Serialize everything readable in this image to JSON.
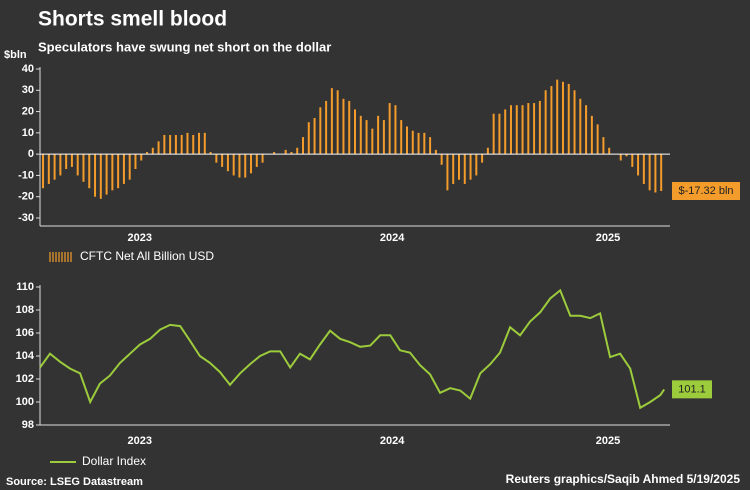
{
  "title": "Shorts smell blood",
  "subtitle": "Speculators have swung net short on the dollar",
  "source": "Source: LSEG Datastream",
  "credit": "Reuters graphics/Saqib Ahmed 5/19/2025",
  "chart_data": [
    {
      "type": "bar",
      "y_label": "$bln",
      "xlim": [
        2023.342,
        2025.414
      ],
      "xticks": [
        {
          "value": 2023.67,
          "label": "2023"
        },
        {
          "value": 2024.5,
          "label": "2024"
        },
        {
          "value": 2025.21,
          "label": "2025"
        }
      ],
      "ylim": [
        -30,
        40
      ],
      "yticks": [
        -30,
        -20,
        -10,
        0,
        10,
        20,
        30,
        40
      ],
      "grid": false,
      "series": [
        {
          "name": "CFTC Net All Billion USD",
          "color": "#f39c2b",
          "x": [
            2023.352,
            2023.371,
            2023.39,
            2023.409,
            2023.428,
            2023.447,
            2023.466,
            2023.485,
            2023.504,
            2023.523,
            2023.542,
            2023.561,
            2023.58,
            2023.599,
            2023.618,
            2023.637,
            2023.656,
            2023.675,
            2023.694,
            2023.713,
            2023.732,
            2023.751,
            2023.77,
            2023.789,
            2023.808,
            2023.827,
            2023.846,
            2023.865,
            2023.884,
            2023.903,
            2023.922,
            2023.941,
            2023.96,
            2023.979,
            2023.998,
            2024.017,
            2024.036,
            2024.055,
            2024.074,
            2024.093,
            2024.112,
            2024.131,
            2024.15,
            2024.169,
            2024.188,
            2024.207,
            2024.226,
            2024.245,
            2024.264,
            2024.283,
            2024.302,
            2024.321,
            2024.34,
            2024.359,
            2024.378,
            2024.397,
            2024.416,
            2024.435,
            2024.454,
            2024.473,
            2024.492,
            2024.511,
            2024.53,
            2024.549,
            2024.568,
            2024.587,
            2024.606,
            2024.625,
            2024.644,
            2024.663,
            2024.682,
            2024.701,
            2024.72,
            2024.739,
            2024.758,
            2024.777,
            2024.796,
            2024.815,
            2024.834,
            2024.853,
            2024.872,
            2024.891,
            2024.91,
            2024.929,
            2024.948,
            2024.967,
            2024.986,
            2025.005,
            2025.024,
            2025.043,
            2025.062,
            2025.081,
            2025.1,
            2025.119,
            2025.138,
            2025.157,
            2025.176,
            2025.195,
            2025.214,
            2025.233,
            2025.252,
            2025.271,
            2025.29,
            2025.309,
            2025.328,
            2025.347,
            2025.366,
            2025.385
          ],
          "values": [
            -16,
            -14,
            -12,
            -10,
            -7,
            -6,
            -10,
            -13,
            -16,
            -20,
            -21,
            -19,
            -17,
            -16,
            -14,
            -12,
            -7,
            -3,
            1,
            3,
            6,
            9,
            9,
            9,
            9,
            10,
            9,
            10,
            10,
            1,
            -4,
            -6,
            -8,
            -10,
            -11,
            -11,
            -9,
            -6,
            -4,
            0,
            1,
            0,
            2,
            1,
            3,
            8,
            15,
            17,
            22,
            25,
            31,
            30,
            26,
            25,
            21,
            18,
            16,
            12,
            18,
            16,
            24,
            23,
            16,
            13,
            11,
            10,
            10,
            8,
            2,
            -5,
            -17,
            -14,
            -12,
            -14,
            -12,
            -10,
            -4,
            3,
            19,
            19,
            21,
            23,
            23,
            23,
            24,
            24,
            25,
            30,
            32,
            35,
            34,
            33,
            30,
            26,
            23,
            18,
            14,
            8,
            3,
            0,
            -3,
            -1,
            -6,
            -10,
            -14,
            -17,
            -18,
            -17.32
          ],
          "value_labels": [
            null,
            null,
            null,
            null,
            null,
            null,
            null,
            null,
            null,
            null,
            null,
            null,
            null,
            null,
            null,
            null,
            null,
            null,
            null,
            null,
            null,
            null,
            null,
            null,
            null,
            null,
            null,
            null,
            null,
            null,
            null,
            null,
            null,
            null,
            null,
            null,
            null,
            null,
            null,
            null,
            null,
            null,
            null,
            null,
            null,
            null,
            null,
            null,
            null,
            null,
            null,
            null,
            null,
            null,
            null,
            null,
            null,
            null,
            null,
            null,
            null,
            null,
            null,
            null,
            null,
            null,
            null,
            null,
            null,
            null,
            null,
            null,
            null,
            null,
            null,
            null,
            null,
            null,
            null,
            null,
            null,
            null,
            null,
            null,
            null,
            null,
            null,
            null,
            null,
            null,
            null,
            null,
            null,
            null,
            null,
            null,
            null,
            null,
            null,
            null,
            null,
            null,
            null,
            null,
            null,
            null,
            null,
            "$-17.32 bln"
          ]
        }
      ]
    },
    {
      "type": "line",
      "xlim": [
        2023.342,
        2025.414
      ],
      "xticks": [
        {
          "value": 2023.67,
          "label": "2023"
        },
        {
          "value": 2024.5,
          "label": "2024"
        },
        {
          "value": 2025.21,
          "label": "2025"
        }
      ],
      "ylim": [
        98,
        110
      ],
      "yticks": [
        98,
        100,
        102,
        104,
        106,
        108,
        110
      ],
      "grid": false,
      "series": [
        {
          "name": "Dollar Index",
          "color": "#9ccb3b",
          "x": [
            2023.342,
            2023.375,
            2023.408,
            2023.441,
            2023.474,
            2023.507,
            2023.539,
            2023.572,
            2023.605,
            2023.638,
            2023.671,
            2023.704,
            2023.737,
            2023.77,
            2023.803,
            2023.836,
            2023.868,
            2023.901,
            2023.934,
            2023.967,
            2024.0,
            2024.033,
            2024.066,
            2024.099,
            2024.132,
            2024.165,
            2024.197,
            2024.23,
            2024.263,
            2024.296,
            2024.329,
            2024.362,
            2024.395,
            2024.428,
            2024.461,
            2024.494,
            2024.526,
            2024.559,
            2024.592,
            2024.625,
            2024.658,
            2024.691,
            2024.724,
            2024.757,
            2024.79,
            2024.823,
            2024.855,
            2024.888,
            2024.921,
            2024.954,
            2024.987,
            2025.02,
            2025.053,
            2025.086,
            2025.119,
            2025.152,
            2025.184,
            2025.217,
            2025.25,
            2025.283,
            2025.316,
            2025.349,
            2025.382,
            2025.395
          ],
          "values": [
            103.0,
            104.2,
            103.5,
            102.9,
            102.5,
            100.0,
            101.6,
            102.3,
            103.4,
            104.2,
            105.0,
            105.5,
            106.3,
            106.7,
            106.6,
            105.3,
            104.0,
            103.4,
            102.6,
            101.5,
            102.5,
            103.3,
            104.0,
            104.4,
            104.4,
            103.0,
            104.2,
            103.7,
            105.0,
            106.2,
            105.5,
            105.2,
            104.8,
            104.9,
            105.8,
            105.8,
            104.5,
            104.3,
            103.2,
            102.4,
            100.8,
            101.2,
            101.0,
            100.3,
            102.5,
            103.3,
            104.3,
            106.5,
            105.8,
            107.0,
            107.8,
            109.0,
            109.7,
            107.5,
            107.5,
            107.3,
            107.7,
            103.9,
            104.2,
            102.9,
            99.5,
            100.0,
            100.6,
            101.1
          ]
        }
      ]
    }
  ]
}
